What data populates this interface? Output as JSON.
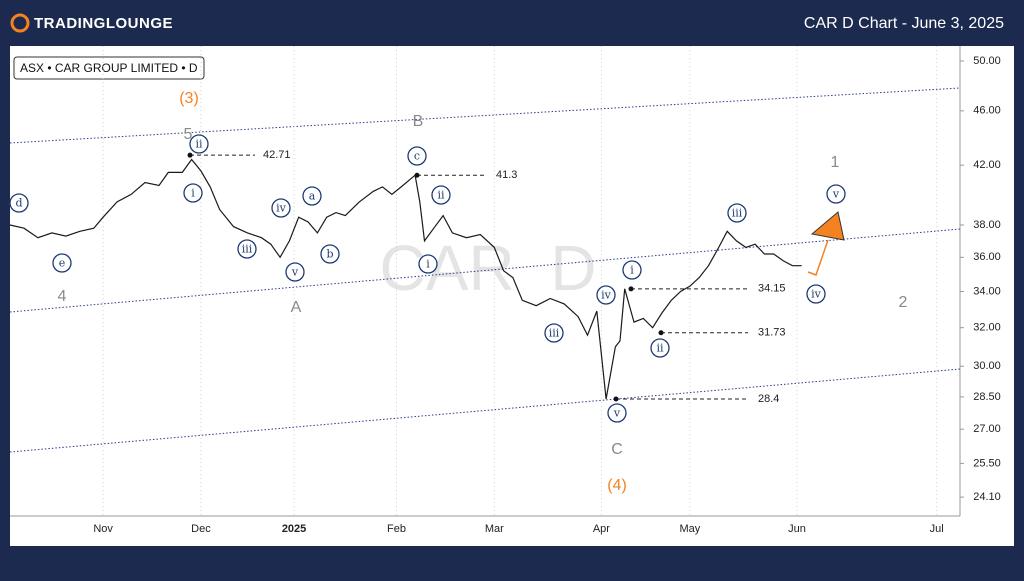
{
  "brand": "TradingLounge",
  "chart_data": {
    "type": "line",
    "title": "CAR D Chart - June 3, 2025",
    "legend_text": "ASX • CAR GROUP LIMITED • D",
    "watermark": "CAR  D",
    "color": "#1a1a1a",
    "log_scale": true,
    "grid": false,
    "x": [
      0,
      3,
      6,
      9,
      12,
      15,
      18,
      20,
      23,
      26,
      29,
      32,
      34,
      37,
      39,
      41,
      43,
      45,
      48,
      51,
      54,
      56,
      58,
      60,
      62,
      64,
      66,
      68,
      70,
      72,
      75,
      78,
      80,
      82,
      84,
      87,
      88,
      89,
      91,
      93,
      95,
      98,
      101,
      104,
      106,
      108,
      110,
      113,
      116,
      119,
      122,
      124,
      126,
      128,
      130,
      131,
      132,
      134,
      136,
      138,
      140,
      142,
      144,
      146,
      148,
      150,
      152,
      154,
      156,
      158,
      160,
      162,
      164,
      166,
      168,
      170
    ],
    "values": [
      38.0,
      37.8,
      37.2,
      37.5,
      37.3,
      37.6,
      37.8,
      38.5,
      39.5,
      40.0,
      40.8,
      40.6,
      41.5,
      41.5,
      42.4,
      41.6,
      40.5,
      39.0,
      37.9,
      37.5,
      37.2,
      36.8,
      36.0,
      37.0,
      38.5,
      38.2,
      37.5,
      38.5,
      38.8,
      38.6,
      39.5,
      40.2,
      40.5,
      40.0,
      40.5,
      41.3,
      39.5,
      37.0,
      37.8,
      38.6,
      37.5,
      37.2,
      37.4,
      36.6,
      35.2,
      34.8,
      33.5,
      33.2,
      33.6,
      33.3,
      32.6,
      31.6,
      32.9,
      28.4,
      31.0,
      31.3,
      34.15,
      32.3,
      32.5,
      32.0,
      32.8,
      33.5,
      34.0,
      34.3,
      34.8,
      35.5,
      36.5,
      37.6,
      37.0,
      36.6,
      36.8,
      36.2,
      36.2,
      35.8,
      35.5,
      35.5
    ],
    "xlim": [
      0,
      204
    ],
    "xticks": [
      {
        "value": 20,
        "label": "Nov"
      },
      {
        "value": 41,
        "label": "Dec"
      },
      {
        "value": 61,
        "label": "2025"
      },
      {
        "value": 83,
        "label": "Feb"
      },
      {
        "value": 104,
        "label": "Mar"
      },
      {
        "value": 127,
        "label": "Apr"
      },
      {
        "value": 146,
        "label": "May"
      },
      {
        "value": 169,
        "label": "Jun"
      },
      {
        "value": 199,
        "label": "Jul"
      }
    ],
    "ylim": [
      23.35,
      50.76
    ],
    "yticks": [
      {
        "value": 50,
        "label": "50.00"
      },
      {
        "value": 46,
        "label": "46.00"
      },
      {
        "value": 42,
        "label": "42.00"
      },
      {
        "value": 38,
        "label": "38.00"
      },
      {
        "value": 36,
        "label": "36.00"
      },
      {
        "value": 34,
        "label": "34.00"
      },
      {
        "value": 32,
        "label": "32.00"
      },
      {
        "value": 30,
        "label": "30.00"
      },
      {
        "value": 28.5,
        "label": "28.50"
      },
      {
        "value": 27,
        "label": "27.00"
      },
      {
        "value": 25.5,
        "label": "25.50"
      },
      {
        "value": 24.1,
        "label": "24.10"
      }
    ],
    "levels": [
      42.71,
      41.3,
      34.15,
      31.73,
      28.4
    ],
    "wave_labels": [
      {
        "text": "(3)",
        "color": "#f58220"
      },
      {
        "text": "(4)",
        "color": "#f58220"
      },
      {
        "text": "5",
        "color": "#8a8a8a"
      },
      {
        "text": "4",
        "color": "#8a8a8a"
      },
      {
        "text": "A",
        "color": "#8a8a8a"
      },
      {
        "text": "B",
        "color": "#8a8a8a"
      },
      {
        "text": "C",
        "color": "#8a8a8a"
      },
      {
        "text": "1",
        "color": "#8a8a8a"
      },
      {
        "text": "2",
        "color": "#8a8a8a"
      },
      {
        "text": "d",
        "color": "#1f3b73",
        "circled": true
      },
      {
        "text": "e",
        "color": "#1f3b73",
        "circled": true
      },
      {
        "text": "ii",
        "color": "#1f3b73",
        "circled": true
      },
      {
        "text": "i",
        "color": "#1f3b73",
        "circled": true
      },
      {
        "text": "iii",
        "color": "#1f3b73",
        "circled": true
      },
      {
        "text": "iv",
        "color": "#1f3b73",
        "circled": true
      },
      {
        "text": "v",
        "color": "#1f3b73",
        "circled": true
      },
      {
        "text": "a",
        "color": "#1f3b73",
        "circled": true
      },
      {
        "text": "b",
        "color": "#1f3b73",
        "circled": true
      },
      {
        "text": "c",
        "color": "#1f3b73",
        "circled": true
      },
      {
        "text": "ii",
        "color": "#1f3b73",
        "circled": true
      },
      {
        "text": "i",
        "color": "#1f3b73",
        "circled": true
      },
      {
        "text": "iii",
        "color": "#1f3b73",
        "circled": true
      },
      {
        "text": "iv",
        "color": "#1f3b73",
        "circled": true
      },
      {
        "text": "v",
        "color": "#1f3b73",
        "circled": true
      },
      {
        "text": "i",
        "color": "#1f3b73",
        "circled": true
      },
      {
        "text": "ii",
        "color": "#1f3b73",
        "circled": true
      },
      {
        "text": "iii",
        "color": "#1f3b73",
        "circled": true
      },
      {
        "text": "iv",
        "color": "#1f3b73",
        "circled": true
      },
      {
        "text": "v",
        "color": "#1f3b73",
        "circled": true
      }
    ]
  }
}
